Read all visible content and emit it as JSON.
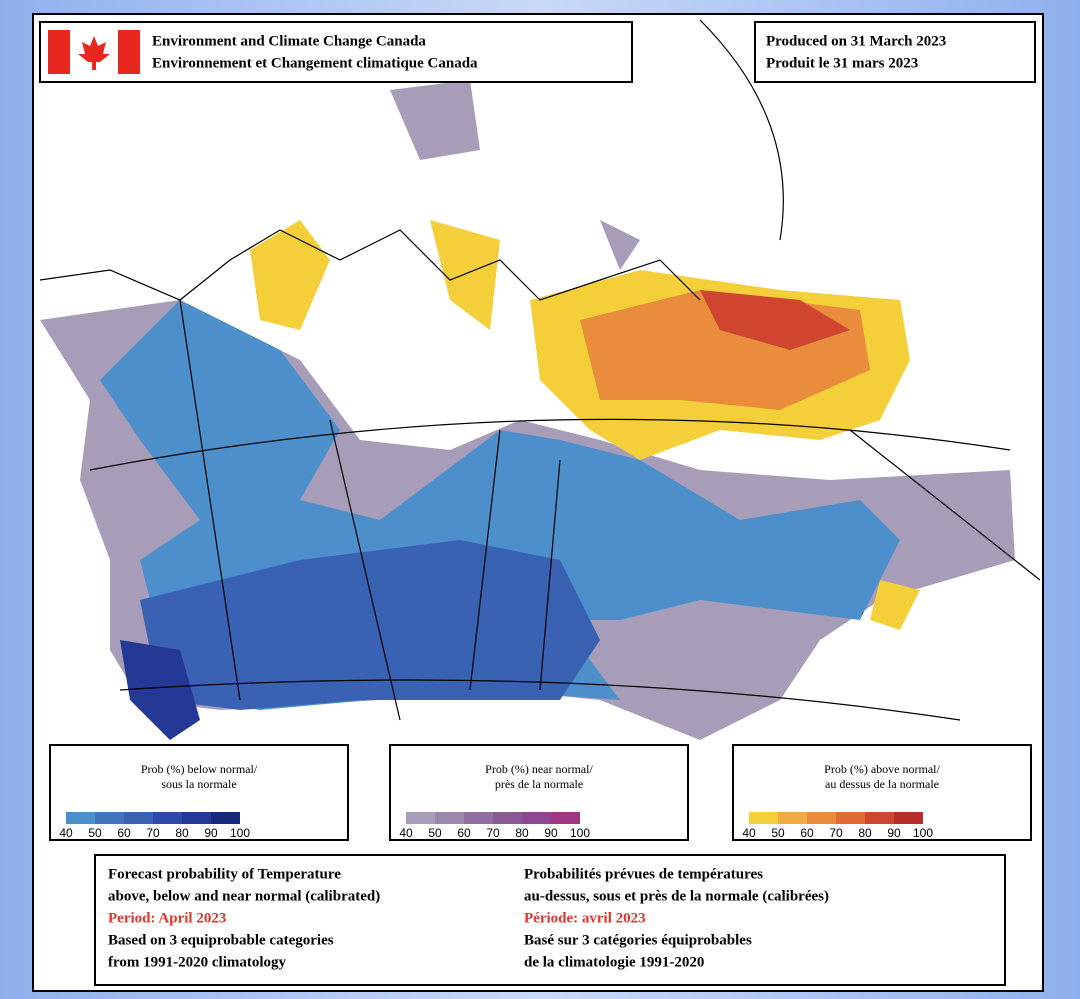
{
  "header": {
    "agency_en": "Environment and Climate Change Canada",
    "agency_fr": "Environnement et Changement climatique Canada",
    "produced_en": "Produced on 31 March 2023",
    "produced_fr": "Produit le 31 mars 2023"
  },
  "legends": [
    {
      "title_en": "Prob (%) below normal/",
      "title_fr": "sous la normale",
      "ticks": [
        40,
        50,
        60,
        70,
        80,
        90,
        100
      ],
      "colors": [
        "#4d8fca",
        "#3f76bb",
        "#3a62b2",
        "#3049a8",
        "#243996",
        "#142a78"
      ]
    },
    {
      "title_en": "Prob (%) near normal/",
      "title_fr": "près de la normale",
      "ticks": [
        40,
        50,
        60,
        70,
        80,
        90,
        100
      ],
      "colors": [
        "#a79db8",
        "#9b86ac",
        "#906ea2",
        "#8a5a97",
        "#8c4790",
        "#a2357f"
      ]
    },
    {
      "title_en": "Prob (%) above normal/",
      "title_fr": "au dessus de la normale",
      "ticks": [
        40,
        50,
        60,
        70,
        80,
        90,
        100
      ],
      "colors": [
        "#f4cf3a",
        "#f0aa43",
        "#e98c3b",
        "#e06b34",
        "#cf4530",
        "#b72d2a"
      ]
    }
  ],
  "footer": {
    "en": [
      "Forecast probability of Temperature",
      "above, below and near normal (calibrated)"
    ],
    "period_en": "Period: April 2023",
    "en_after": [
      "Based on 3 equiprobable categories",
      " from 1991-2020 climatology"
    ],
    "fr": [
      "Probabilités prévues de températures",
      "au-dessus, sous et près de la normale (calibrées)"
    ],
    "period_fr": "Période: avril 2023",
    "fr_after": [
      "Basé sur 3 catégories équiprobables",
      "de la climatologie 1991-2020"
    ]
  }
}
